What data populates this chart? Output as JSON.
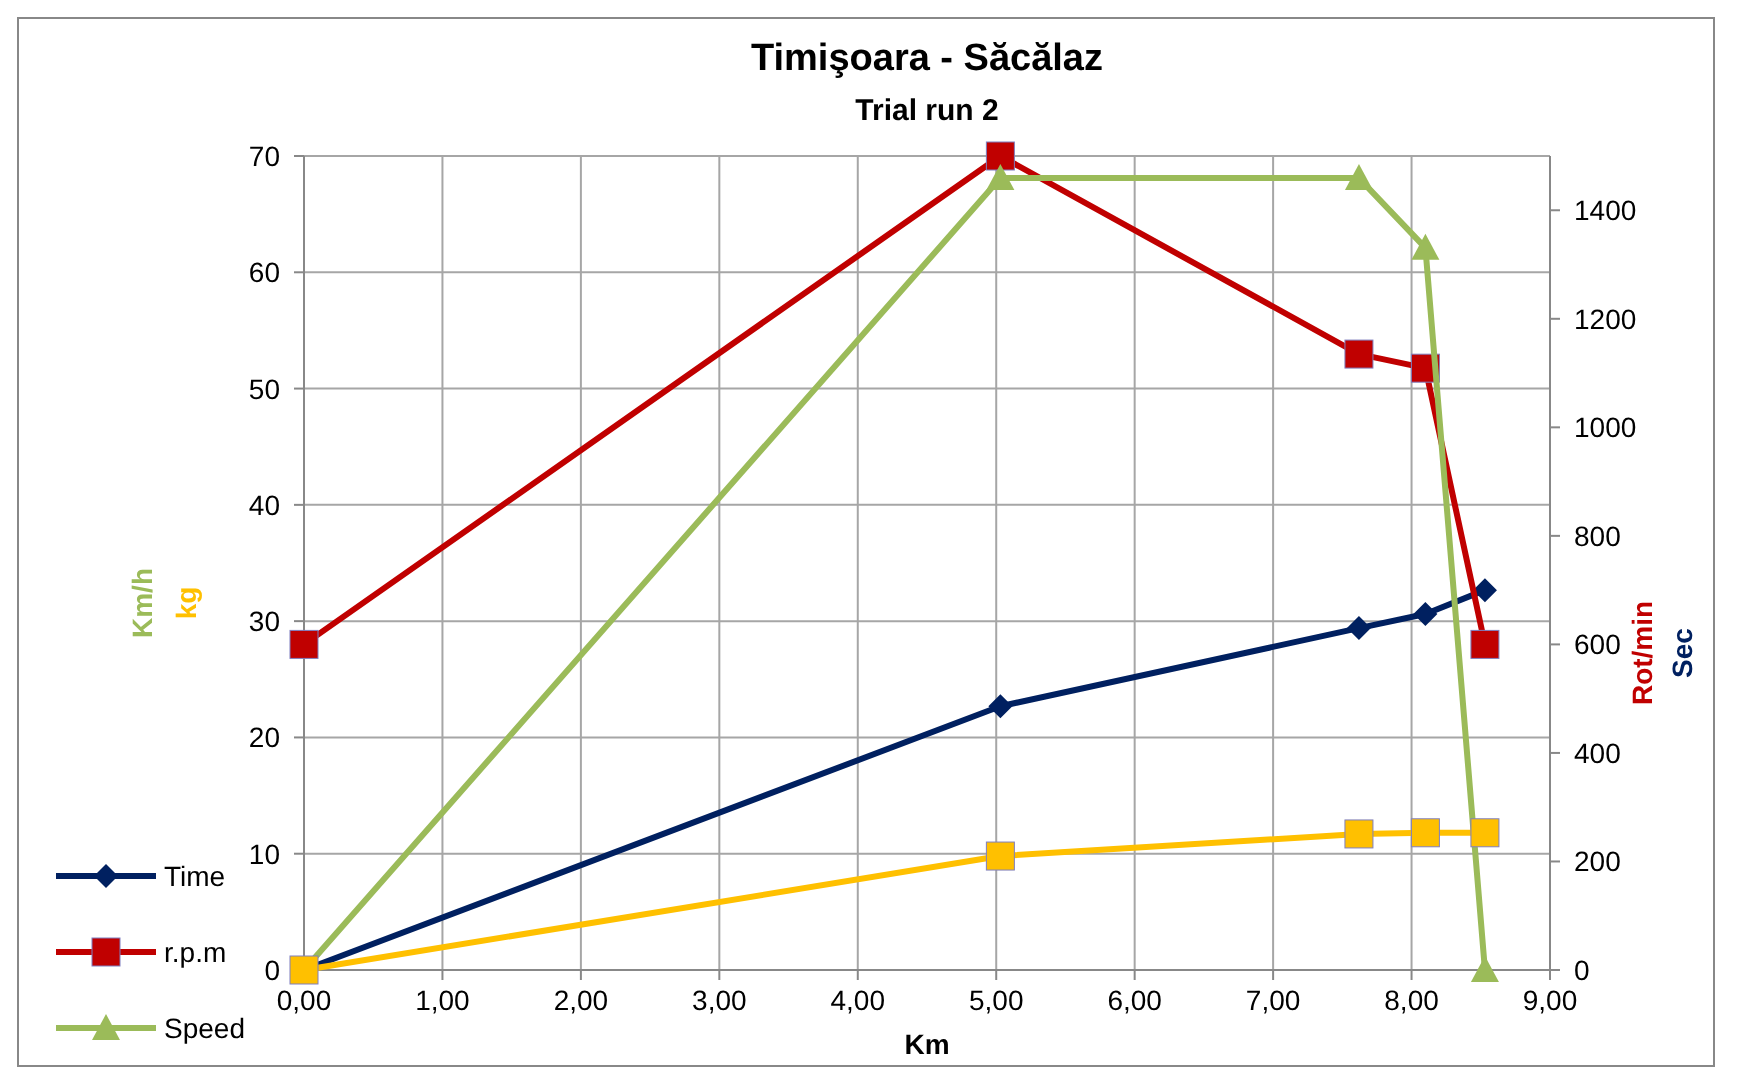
{
  "chart_data": {
    "type": "line",
    "title": "Timişoara - Săcălaz",
    "subtitle": "Trial run 2",
    "xlabel": "Km",
    "ylabel": "Km/h",
    "y2label": "Rot/min",
    "annotations": [
      "kg",
      "Sec"
    ],
    "x": [
      0,
      5.03,
      7.62,
      8.1,
      8.53
    ],
    "xlim": [
      0,
      9
    ],
    "xticks": [
      {
        "value": 0,
        "label": "0,00"
      },
      {
        "value": 1,
        "label": "1,00"
      },
      {
        "value": 2,
        "label": "2,00"
      },
      {
        "value": 3,
        "label": "3,00"
      },
      {
        "value": 4,
        "label": "4,00"
      },
      {
        "value": 5,
        "label": "5,00"
      },
      {
        "value": 6,
        "label": "6,00"
      },
      {
        "value": 7,
        "label": "7,00"
      },
      {
        "value": 8,
        "label": "8,00"
      },
      {
        "value": 9,
        "label": "9,00"
      }
    ],
    "ylim": [
      0,
      70
    ],
    "yticks": [
      0,
      10,
      20,
      30,
      40,
      50,
      60,
      70
    ],
    "y2lim": [
      0,
      1500
    ],
    "y2ticks": [
      0,
      200,
      400,
      600,
      800,
      1000,
      1200,
      1400
    ],
    "grid": true,
    "legend": "left",
    "series": [
      {
        "name": "Time",
        "color": "#002060",
        "axis": "y2",
        "marker": "diamond",
        "values": [
          0,
          486,
          630,
          656,
          700
        ]
      },
      {
        "name": "r.p.m",
        "color": "#c00000",
        "axis": "y2",
        "marker": "square",
        "values": [
          600,
          1500,
          1135,
          1109,
          600
        ]
      },
      {
        "name": "Speed",
        "color": "#9bbb59",
        "axis": "y",
        "marker": "triangle",
        "values": [
          0,
          68.1,
          68.1,
          62.1,
          0
        ]
      },
      {
        "color": "#ffc000",
        "axis": "y",
        "marker": "square",
        "values": [
          0,
          9.8,
          11.7,
          11.8,
          11.8
        ]
      }
    ]
  }
}
